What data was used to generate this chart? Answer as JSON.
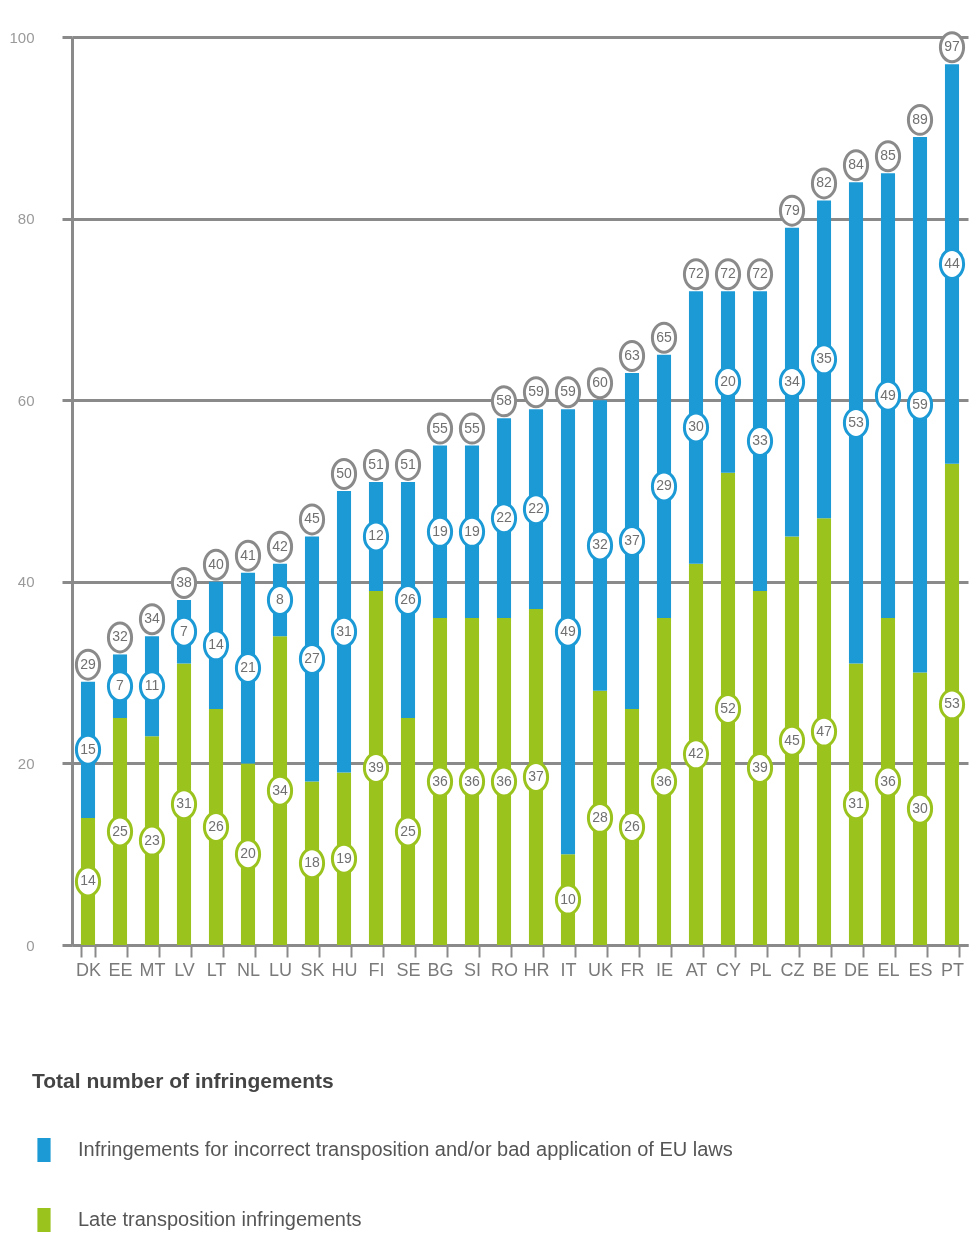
{
  "chart_data": {
    "type": "bar",
    "stacked": true,
    "categories": [
      "DK",
      "EE",
      "MT",
      "LV",
      "LT",
      "NL",
      "LU",
      "SK",
      "HU",
      "FI",
      "SE",
      "BG",
      "SI",
      "RO",
      "HR",
      "IT",
      "UK",
      "FR",
      "IE",
      "AT",
      "CY",
      "PL",
      "CZ",
      "BE",
      "DE",
      "EL",
      "ES",
      "PT"
    ],
    "series": [
      {
        "name": "Late transposition infringements",
        "color": "#9bc31e",
        "values": [
          14,
          25,
          23,
          31,
          26,
          20,
          34,
          18,
          19,
          39,
          25,
          36,
          36,
          36,
          37,
          10,
          28,
          26,
          36,
          42,
          52,
          39,
          45,
          47,
          31,
          36,
          30,
          53
        ]
      },
      {
        "name": "Infringements for incorrect transposition and/or bad application of EU laws",
        "color": "#1b9ad6",
        "values": [
          15,
          7,
          11,
          7,
          14,
          21,
          8,
          27,
          31,
          12,
          26,
          19,
          19,
          22,
          22,
          49,
          32,
          37,
          29,
          30,
          20,
          33,
          34,
          35,
          53,
          49,
          59,
          44
        ]
      }
    ],
    "totals": [
      "29",
      "32",
      "34",
      "38",
      "40",
      "41",
      "42",
      "45",
      "50",
      "51",
      "51",
      "55",
      "55",
      "58",
      "59",
      "59",
      "60",
      "63",
      "65",
      "72",
      "72",
      "72",
      "79",
      "82",
      "84",
      "85",
      "89",
      "97"
    ],
    "data_labels": true,
    "ylim": [
      0,
      100
    ],
    "yticks": [
      0,
      20,
      40,
      60,
      80,
      100
    ],
    "grid": "y",
    "legend": "bottom",
    "legend_title": "Total number of infringements"
  }
}
